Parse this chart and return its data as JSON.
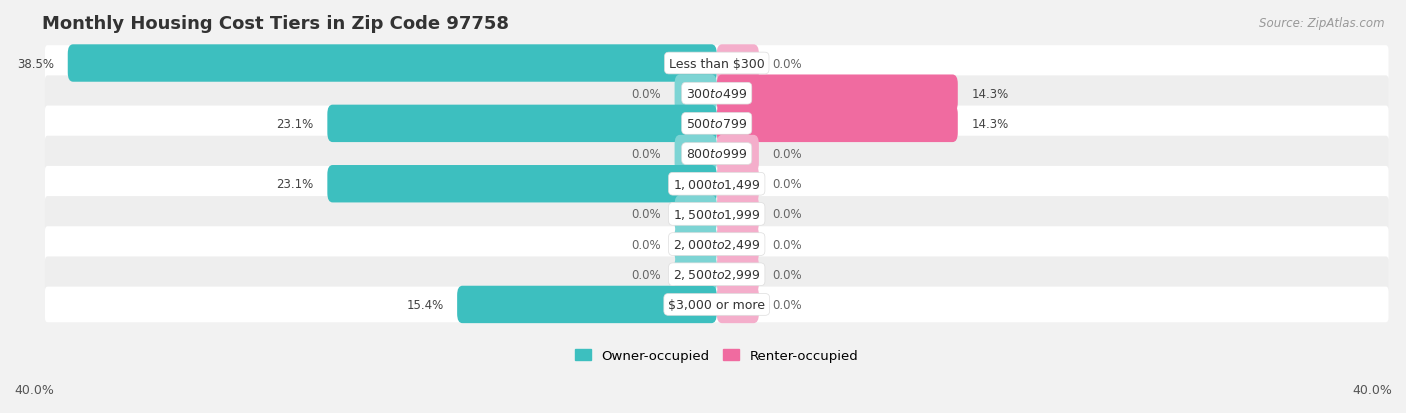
{
  "title": "Monthly Housing Cost Tiers in Zip Code 97758",
  "source": "Source: ZipAtlas.com",
  "categories": [
    "Less than $300",
    "$300 to $499",
    "$500 to $799",
    "$800 to $999",
    "$1,000 to $1,499",
    "$1,500 to $1,999",
    "$2,000 to $2,499",
    "$2,500 to $2,999",
    "$3,000 or more"
  ],
  "owner_values": [
    38.5,
    0.0,
    23.1,
    0.0,
    23.1,
    0.0,
    0.0,
    0.0,
    15.4
  ],
  "renter_values": [
    0.0,
    14.3,
    14.3,
    0.0,
    0.0,
    0.0,
    0.0,
    0.0,
    0.0
  ],
  "owner_color": "#3DBFBF",
  "renter_color": "#F06BA0",
  "owner_color_zero": "#7DD4D4",
  "renter_color_zero": "#F4AECB",
  "row_bg_light": "#FFFFFF",
  "row_bg_dark": "#EEEEEE",
  "axis_limit": 40.0,
  "zero_stub": 2.5,
  "legend_owner": "Owner-occupied",
  "legend_renter": "Renter-occupied",
  "title_fontsize": 13,
  "bar_label_fontsize": 8.5,
  "cat_label_fontsize": 9,
  "source_fontsize": 8.5
}
